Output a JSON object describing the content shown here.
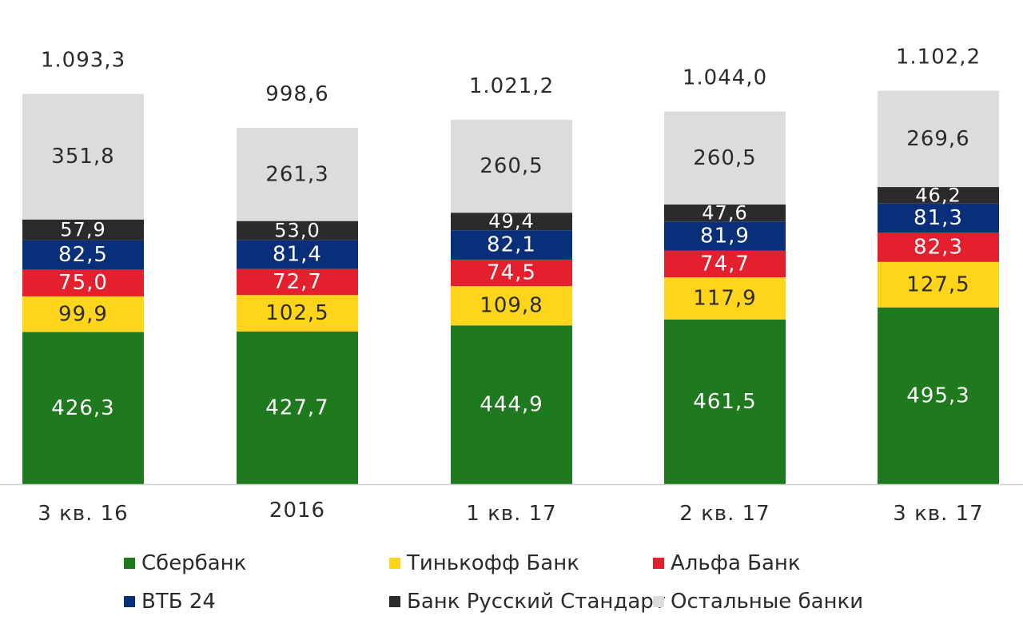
{
  "chart_data": {
    "type": "bar",
    "stacked": true,
    "categories": [
      "3 кв. 16",
      "2016",
      "1 кв. 17",
      "2 кв. 17",
      "3 кв. 17"
    ],
    "totals": [
      "1.093,3",
      "998,6",
      "1.021,2",
      "1.044,0",
      "1.102,2"
    ],
    "total_values": [
      1093.3,
      998.6,
      1021.2,
      1044.0,
      1102.2
    ],
    "series": [
      {
        "name": "Сбербанк",
        "color": "#1f7a1f",
        "label_color": "#ffffff",
        "values": [
          426.3,
          427.7,
          444.9,
          461.5,
          495.3
        ],
        "labels": [
          "426,3",
          "427,7",
          "444,9",
          "461,5",
          "495,3"
        ]
      },
      {
        "name": "Тинькофф Банк",
        "color": "#ffd51c",
        "label_color": "#2b2b2b",
        "values": [
          99.9,
          102.5,
          109.8,
          117.9,
          127.5
        ],
        "labels": [
          "99,9",
          "102,5",
          "109,8",
          "117,9",
          "127,5"
        ]
      },
      {
        "name": "Альфа Банк",
        "color": "#e4202e",
        "label_color": "#ffffff",
        "values": [
          75.0,
          72.7,
          74.5,
          74.7,
          82.3
        ],
        "labels": [
          "75,0",
          "72,7",
          "74,5",
          "74,7",
          "82,3"
        ]
      },
      {
        "name": "ВТБ 24",
        "color": "#0a2f7a",
        "label_color": "#ffffff",
        "values": [
          82.5,
          81.4,
          82.1,
          81.9,
          81.3
        ],
        "labels": [
          "82,5",
          "81,4",
          "82,1",
          "81,9",
          "81,3"
        ]
      },
      {
        "name": "Банк Русский Стандарт",
        "color": "#2b2b2b",
        "label_color": "#ffffff",
        "values": [
          57.9,
          53.0,
          49.4,
          47.6,
          46.2
        ],
        "labels": [
          "57,9",
          "53,0",
          "49,4",
          "47,6",
          "46,2"
        ]
      },
      {
        "name": "Остальные банки",
        "color": "#dcdcdd",
        "label_color": "#2b2b2b",
        "values": [
          351.8,
          261.3,
          260.5,
          260.5,
          269.6
        ],
        "labels": [
          "351,8",
          "261,3",
          "260,5",
          "260,5",
          "269,6"
        ]
      }
    ],
    "legend_position": "bottom",
    "grid": false
  }
}
